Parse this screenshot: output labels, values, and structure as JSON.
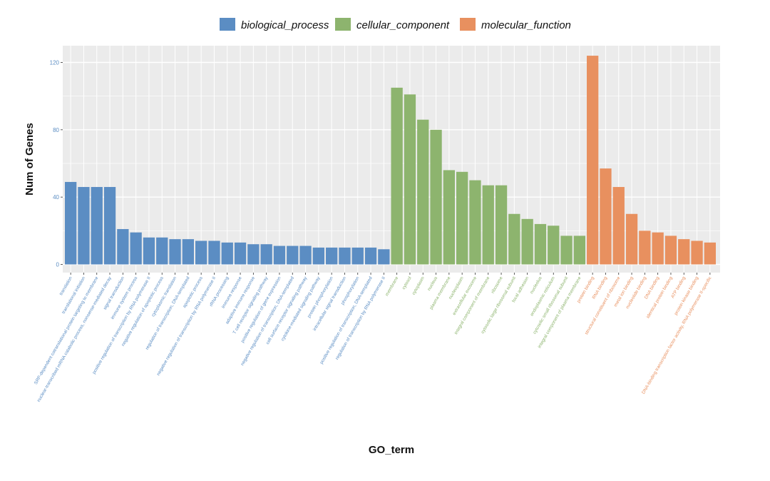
{
  "chart_data": {
    "type": "bar",
    "title": "",
    "xlabel": "GO_term",
    "ylabel": "Num of Genes",
    "ylim": [
      0,
      125
    ],
    "yticks": [
      0,
      40,
      80,
      120
    ],
    "grid": true,
    "legend_position": "top",
    "colors": {
      "biological_process": "#5B8DC3",
      "cellular_component": "#8DB46E",
      "molecular_function": "#E8905F",
      "panel_background": "#EBEBEB",
      "grid": "#FFFFFF"
    },
    "legend": [
      "biological_process",
      "cellular_component",
      "molecular_function"
    ],
    "series": [
      {
        "name": "biological_process",
        "categories": [
          "translation",
          "translational initiation",
          "SRP-dependent cotranslational protein targeting to membrane",
          "nuclear-transcribed mRNA catabolic process, nonsense-mediated decay",
          "signal transduction",
          "immune system process",
          "positive regulation of transcription by RNA polymerase II",
          "negative regulation of apoptotic process",
          "cytoplasmic translation",
          "regulation of transcription, DNA-templated",
          "apoptotic process",
          "negative regulation of transcription by RNA polymerase II",
          "rRNA processing",
          "immune response",
          "adaptive immune response",
          "T cell receptor signaling pathway",
          "positive regulation of gene expression",
          "negative regulation of transcription, DNA-templated",
          "cell surface receptor signaling pathway",
          "cytokine-mediated signaling pathway",
          "protein phosphorylation",
          "intracellular signal transduction",
          "phosphorylation",
          "positive regulation of transcription, DNA-templated",
          "regulation of transcription by RNA polymerase II"
        ],
        "values": [
          49,
          46,
          46,
          46,
          21,
          19,
          16,
          16,
          15,
          15,
          14,
          14,
          13,
          13,
          12,
          12,
          11,
          11,
          11,
          10,
          10,
          10,
          10,
          10,
          9
        ]
      },
      {
        "name": "cellular_component",
        "categories": [
          "membrane",
          "cytosol",
          "cytoplasm",
          "nucleus",
          "plasma membrane",
          "nucleoplasm",
          "extracellular exosome",
          "integral component of membrane",
          "ribosome",
          "cytosolic large ribosomal subunit",
          "focal adhesion",
          "nucleolus",
          "endoplasmic reticulum",
          "cytosolic small ribosomal subunit",
          "integral component of plasma membrane"
        ],
        "values": [
          105,
          101,
          86,
          80,
          56,
          55,
          50,
          47,
          47,
          30,
          27,
          24,
          23,
          17,
          17
        ]
      },
      {
        "name": "molecular_function",
        "categories": [
          "protein binding",
          "RNA binding",
          "structural constituent of ribosome",
          "metal ion binding",
          "nucleotide binding",
          "DNA binding",
          "identical protein binding",
          "ATP binding",
          "protein kinase binding",
          "DNA-binding transcription factor activity, RNA polymerase II-specific"
        ],
        "values": [
          124,
          57,
          46,
          30,
          20,
          19,
          17,
          15,
          14,
          13
        ]
      }
    ]
  }
}
